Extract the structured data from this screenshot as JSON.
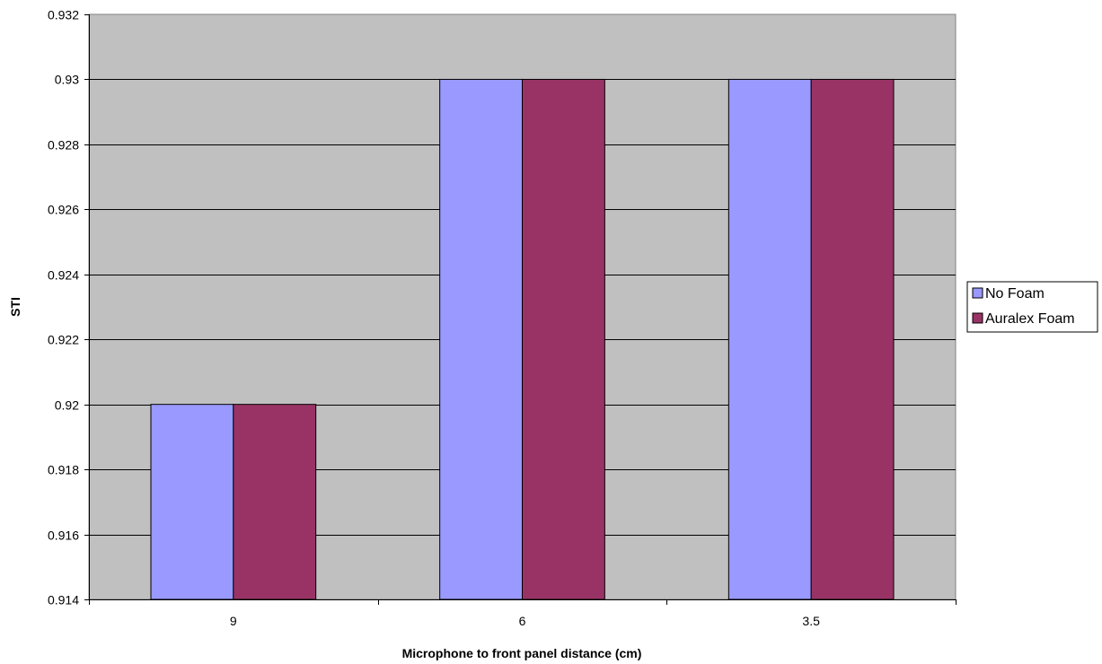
{
  "chart_data": {
    "type": "bar",
    "title": "",
    "xlabel": "Microphone to front panel distance (cm)",
    "ylabel": "STI",
    "categories": [
      "9",
      "6",
      "3.5"
    ],
    "series": [
      {
        "name": "No Foam",
        "values": [
          0.92,
          0.93,
          0.93
        ],
        "color": "#9999FF"
      },
      {
        "name": "Auralex Foam",
        "values": [
          0.92,
          0.93,
          0.93
        ],
        "color": "#993366"
      }
    ],
    "ylim": [
      0.914,
      0.932
    ],
    "yticks": [
      0.914,
      0.916,
      0.918,
      0.92,
      0.922,
      0.924,
      0.926,
      0.928,
      0.93,
      0.932
    ],
    "ytick_labels": [
      "0.914",
      "0.916",
      "0.918",
      "0.92",
      "0.922",
      "0.924",
      "0.926",
      "0.928",
      "0.93",
      "0.932"
    ],
    "grid": true,
    "plot_background": "#C0C0C0",
    "legend_position": "right"
  }
}
